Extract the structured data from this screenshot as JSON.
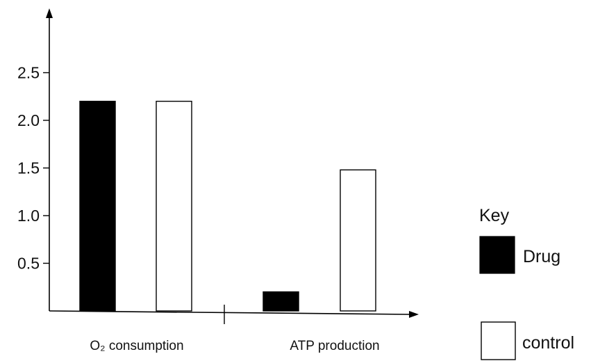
{
  "chart_data": {
    "type": "bar",
    "categories": [
      "O₂ consumption",
      "ATP production"
    ],
    "series": [
      {
        "name": "Drug",
        "values": [
          2.2,
          0.2
        ],
        "color": "#000000"
      },
      {
        "name": "control",
        "values": [
          2.2,
          1.48
        ],
        "color": "#ffffff"
      }
    ],
    "ylim": [
      0,
      2.75
    ],
    "yticks": [
      "0.5",
      "1.0",
      "1.5",
      "2.0",
      "2.5"
    ],
    "legend": {
      "title": "Key",
      "placement": "right"
    },
    "grid": false
  }
}
